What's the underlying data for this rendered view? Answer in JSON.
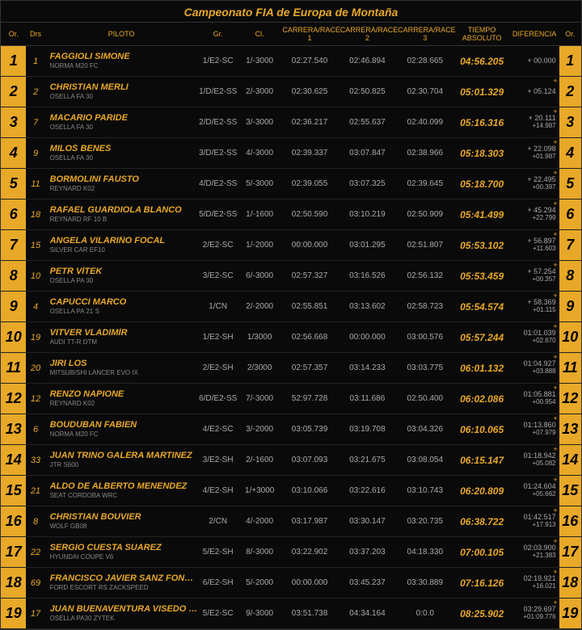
{
  "title": "Campeonato FIA de Europa de Montaña",
  "columns": {
    "or": "Or.",
    "drs": "Drs",
    "pilot": "PILOTO",
    "gr": "Gr.",
    "cl": "Cl.",
    "r1": "CARRERA/RACE 1",
    "r2": "CARRERA/RACE 2",
    "r3": "CARRERA/RACE 3",
    "abs": "TIEMPO ABSOLUTO",
    "dif": "DIFERENCIA",
    "or2": "Or."
  },
  "style": {
    "background": "#000000",
    "accent": "#e8a828",
    "row_border": "#222222",
    "text_muted": "#aaaaaa",
    "car_text": "#888888",
    "title_fontsize": 14,
    "pos_fontsize": 18,
    "body_fontsize": 10
  },
  "rows": [
    {
      "pos": "1",
      "drs": "1",
      "name": "FAGGIOLI SIMONE",
      "car": "NORMA M20 FC",
      "gr": "1/E2-SC",
      "cl": "1/-3000",
      "r1": "02:27.540",
      "r2": "02:46.894",
      "r3": "02:28.665",
      "abs": "04:56.205",
      "d1": "+ 00.000",
      "d2": "",
      "plus": false
    },
    {
      "pos": "2",
      "drs": "2",
      "name": "CHRISTIAN MERLI",
      "car": "OSELLA FA 30",
      "gr": "1/D/E2-SS",
      "cl": "2/-3000",
      "r1": "02:30.625",
      "r2": "02:50.825",
      "r3": "02:30.704",
      "abs": "05:01.329",
      "d1": "+ 05.124",
      "d2": "",
      "plus": true
    },
    {
      "pos": "3",
      "drs": "7",
      "name": "MACARIO PARIDE",
      "car": "OSELLA FA 30",
      "gr": "2/D/E2-SS",
      "cl": "3/-3000",
      "r1": "02:36.217",
      "r2": "02:55.637",
      "r3": "02:40.099",
      "abs": "05:16.316",
      "d1": "+ 20.111",
      "d2": "+14.987",
      "plus": true
    },
    {
      "pos": "4",
      "drs": "9",
      "name": "MILOŠ BENEŠ",
      "car": "OSELLA FA 30",
      "gr": "3/D/E2-SS",
      "cl": "4/-3000",
      "r1": "02:39.337",
      "r2": "03:07.847",
      "r3": "02:38.966",
      "abs": "05:18.303",
      "d1": "+ 22.098",
      "d2": "+01.987",
      "plus": true
    },
    {
      "pos": "5",
      "drs": "11",
      "name": "BORMOLINI FAUSTO",
      "car": "REYNARD K02",
      "gr": "4/D/E2-SS",
      "cl": "5/-3000",
      "r1": "02:39.055",
      "r2": "03:07.325",
      "r3": "02:39.645",
      "abs": "05:18.700",
      "d1": "+ 22.495",
      "d2": "+00.397",
      "plus": true
    },
    {
      "pos": "6",
      "drs": "18",
      "name": "RAFAEL GUARDIOLA BLANCO",
      "car": "REYNARD RF 10 B",
      "gr": "5/D/E2-SS",
      "cl": "1/-1600",
      "r1": "02:50.590",
      "r2": "03:10.219",
      "r3": "02:50.909",
      "abs": "05:41.499",
      "d1": "+ 45.294",
      "d2": "+22.799",
      "plus": true
    },
    {
      "pos": "7",
      "drs": "15",
      "name": "ANGELA VILARIÑO FOCAL",
      "car": "SILVER CAR EF10",
      "gr": "2/E2-SC",
      "cl": "1/-2000",
      "r1": "00:00.000",
      "r2": "03:01.295",
      "r3": "02:51.807",
      "abs": "05:53.102",
      "d1": "+ 56.897",
      "d2": "+11.603",
      "plus": true
    },
    {
      "pos": "8",
      "drs": "10",
      "name": "PETR VÍTEK",
      "car": "OSELLA PA 30",
      "gr": "3/E2-SC",
      "cl": "6/-3000",
      "r1": "02:57.327",
      "r2": "03:16.526",
      "r3": "02:56.132",
      "abs": "05:53.459",
      "d1": "+ 57.254",
      "d2": "+00.357",
      "plus": true
    },
    {
      "pos": "9",
      "drs": "4",
      "name": "CAPUCCI MARCO",
      "car": "OSELLA PA 21 S",
      "gr": "1/CN",
      "cl": "2/-2000",
      "r1": "02:55.851",
      "r2": "03:13.602",
      "r3": "02:58.723",
      "abs": "05:54.574",
      "d1": "+ 58.369",
      "d2": "+01.115",
      "plus": true
    },
    {
      "pos": "10",
      "drs": "19",
      "name": "VITVER VLADIMÍR",
      "car": "AUDI TT-R DTM",
      "gr": "1/E2-SH",
      "cl": "1/3000",
      "r1": "02:56.668",
      "r2": "00:00.000",
      "r3": "03:00.576",
      "abs": "05:57.244",
      "d1": "01:01.039",
      "d2": "+02.670",
      "plus": true
    },
    {
      "pos": "11",
      "drs": "20",
      "name": "JIRI LOS",
      "car": "MITSUBISHI LANCER EVO IX",
      "gr": "2/E2-SH",
      "cl": "2/3000",
      "r1": "02:57.357",
      "r2": "03:14.233",
      "r3": "03:03.775",
      "abs": "06:01.132",
      "d1": "01:04.927",
      "d2": "+03.888",
      "plus": true
    },
    {
      "pos": "12",
      "drs": "12",
      "name": "RENZO NAPIONE",
      "car": "REYNARD K02",
      "gr": "6/D/E2-SS",
      "cl": "7/-3000",
      "r1": "52:97.728",
      "r2": "03:11.686",
      "r3": "02:50.400",
      "abs": "06:02.086",
      "d1": "01:05.881",
      "d2": "+00.954",
      "plus": true
    },
    {
      "pos": "13",
      "drs": "6",
      "name": "BOUDUBAN FABIEN",
      "car": "NORMA M20 FC",
      "gr": "4/E2-SC",
      "cl": "3/-2000",
      "r1": "03:05.739",
      "r2": "03:19.708",
      "r3": "03:04.326",
      "abs": "06:10.065",
      "d1": "01:13.860",
      "d2": "+07.979",
      "plus": true
    },
    {
      "pos": "14",
      "drs": "33",
      "name": "JUAN TRINO GALERA MARTINEZ",
      "car": "JTR S600",
      "gr": "3/E2-SH",
      "cl": "2/-1600",
      "r1": "03:07.093",
      "r2": "03:21.675",
      "r3": "03:08.054",
      "abs": "06:15.147",
      "d1": "01:18.942",
      "d2": "+05.082",
      "plus": true
    },
    {
      "pos": "15",
      "drs": "21",
      "name": "ALDO DE ALBERTO MENENDEZ",
      "car": "SEAT CORDOBA WRC",
      "gr": "4/E2-SH",
      "cl": "1/+3000",
      "r1": "03:10.066",
      "r2": "03:22.616",
      "r3": "03:10.743",
      "abs": "06:20.809",
      "d1": "01:24.604",
      "d2": "+05.662",
      "plus": true
    },
    {
      "pos": "16",
      "drs": "8",
      "name": "CHRISTIAN BOUVIER",
      "car": "WOLF GB08",
      "gr": "2/CN",
      "cl": "4/-2000",
      "r1": "03:17.987",
      "r2": "03:30.147",
      "r3": "03:20.735",
      "abs": "06:38.722",
      "d1": "01:42.517",
      "d2": "+17.913",
      "plus": true
    },
    {
      "pos": "17",
      "drs": "22",
      "name": "SERGIO CUESTA SUAREZ",
      "car": "HYUNDAI COUPE V6",
      "gr": "5/E2-SH",
      "cl": "8/-3000",
      "r1": "03:22.902",
      "r2": "03:37.203",
      "r3": "04:18.330",
      "abs": "07:00.105",
      "d1": "02:03.900",
      "d2": "+21.383",
      "plus": true
    },
    {
      "pos": "18",
      "drs": "69",
      "name": "FRANCISCO JAVIER SANZ FONSECA",
      "car": "FORD ESCORT RS ZACKSPEED",
      "gr": "6/E2-SH",
      "cl": "5/-2000",
      "r1": "00:00.000",
      "r2": "03:45.237",
      "r3": "03:30.889",
      "abs": "07:16.126",
      "d1": "02:19.921",
      "d2": "+16.021",
      "plus": true
    },
    {
      "pos": "19",
      "drs": "17",
      "name": "JUAN BUENAVENTURA VISEDO RODRIGUEZ",
      "car": "OSELLA PA30 ZYTEK",
      "gr": "5/E2-SC",
      "cl": "9/-3000",
      "r1": "03:51.738",
      "r2": "04:34.164",
      "r3": "0:0.0",
      "abs": "08:25.902",
      "d1": "03:29.697",
      "d2": "+01:09.776",
      "plus": true
    }
  ]
}
